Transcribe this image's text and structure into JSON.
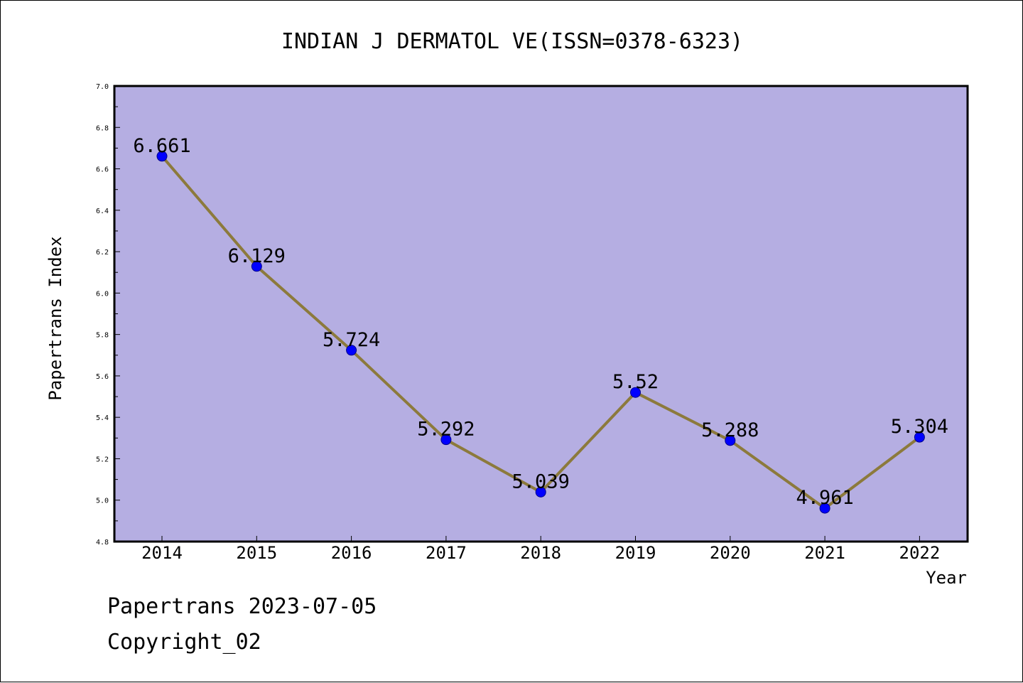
{
  "footer": {
    "line1": "Papertrans 2023-07-05",
    "line2": "Copyright_02"
  },
  "colors": {
    "plot_background": "#b5aee2",
    "line": "#8c7a3c",
    "marker": "#0000ff",
    "page_background": "#ffffff"
  },
  "chart_data": {
    "type": "line",
    "title": "INDIAN J DERMATOL VE(ISSN=0378-6323)",
    "xlabel": "Year",
    "ylabel": "Papertrans Index",
    "categories": [
      "2014",
      "2015",
      "2016",
      "2017",
      "2018",
      "2019",
      "2020",
      "2021",
      "2022"
    ],
    "series": [
      {
        "values": [
          6.661,
          6.129,
          5.724,
          5.292,
          5.039,
          5.52,
          5.288,
          4.961,
          5.304
        ],
        "labels": [
          "6.661",
          "6.129",
          "5.724",
          "5.292",
          "5.039",
          "5.52",
          "5.288",
          "4.961",
          "5.304"
        ]
      }
    ],
    "ylim": [
      4.8,
      7.0
    ],
    "yticks": [
      "4.8",
      "5.0",
      "5.2",
      "5.4",
      "5.6",
      "5.8",
      "6.0",
      "6.2",
      "6.4",
      "6.6",
      "6.8",
      "7.0"
    ],
    "grid": false,
    "legend": "none"
  }
}
